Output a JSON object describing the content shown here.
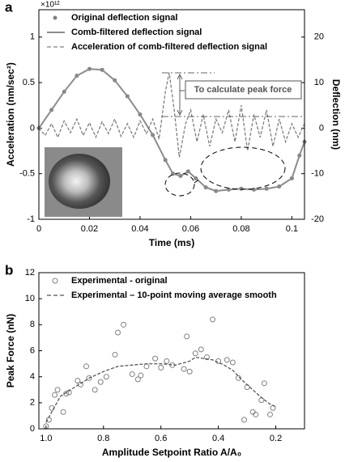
{
  "chart_data": [
    {
      "type": "line",
      "panel_label": "a",
      "exponent_label": "×10¹²",
      "xlabel": "Time (ms)",
      "ylabel": "Acceleration (nm/sec²)",
      "y2label": "Deflection (nm)",
      "annotation": "To calculate peak force",
      "xlim": [
        0,
        0.105
      ],
      "xticks": [
        0,
        0.02,
        0.04,
        0.06,
        0.08,
        0.1
      ],
      "ylim": [
        -1,
        1.3
      ],
      "yticks": [
        -1,
        -0.5,
        0,
        0.5,
        1
      ],
      "y2lim": [
        -20,
        26
      ],
      "y2ticks": [
        -20,
        -10,
        0,
        10,
        20
      ],
      "series": [
        {
          "name": "Original deflection signal",
          "color": "#808080",
          "style": "markers",
          "axis": "y2",
          "x": [
            0,
            0.005,
            0.01,
            0.015,
            0.02,
            0.025,
            0.03,
            0.035,
            0.04,
            0.045,
            0.05,
            0.053,
            0.056,
            0.059,
            0.062,
            0.066,
            0.07,
            0.075,
            0.08,
            0.085,
            0.09,
            0.095,
            0.1,
            0.103,
            0.105
          ],
          "values": [
            0,
            4,
            8,
            11.5,
            13,
            12.8,
            10.5,
            7,
            3,
            -1.5,
            -7,
            -10,
            -10.5,
            -9.5,
            -11,
            -13,
            -13.8,
            -13.5,
            -13.3,
            -13.5,
            -13.3,
            -12.8,
            -11,
            -6,
            -3
          ]
        },
        {
          "name": "Comb-filtered deflection signal",
          "color": "#8c8c8c",
          "style": "solid",
          "axis": "y2",
          "x": [
            0,
            0.005,
            0.01,
            0.015,
            0.02,
            0.025,
            0.03,
            0.035,
            0.04,
            0.045,
            0.05,
            0.053,
            0.056,
            0.059,
            0.062,
            0.066,
            0.07,
            0.075,
            0.08,
            0.085,
            0.09,
            0.095,
            0.1,
            0.103,
            0.105
          ],
          "values": [
            0,
            4,
            8,
            11.5,
            13,
            12.8,
            10.5,
            7,
            3,
            -1.5,
            -7,
            -10,
            -10.5,
            -9.5,
            -11,
            -13,
            -13.8,
            -13.5,
            -13.3,
            -13.5,
            -13.3,
            -12.8,
            -11,
            -6,
            -3
          ]
        },
        {
          "name": "Acceleration of comb-filtered deflection signal",
          "color": "#808080",
          "style": "dashed",
          "axis": "y",
          "x": [
            0,
            0.0025,
            0.005,
            0.0075,
            0.01,
            0.0125,
            0.015,
            0.0175,
            0.02,
            0.0225,
            0.025,
            0.0275,
            0.03,
            0.0325,
            0.035,
            0.0375,
            0.04,
            0.0425,
            0.045,
            0.0475,
            0.05,
            0.0515,
            0.0535,
            0.0555,
            0.058,
            0.06,
            0.0625,
            0.065,
            0.0675,
            0.07,
            0.0725,
            0.075,
            0.0775,
            0.08,
            0.0825,
            0.085,
            0.0875,
            0.09,
            0.0925,
            0.095,
            0.0975,
            0.1,
            0.1025,
            0.105
          ],
          "values": [
            0,
            -0.08,
            0.05,
            -0.1,
            0.08,
            -0.05,
            0.1,
            -0.08,
            0.06,
            -0.1,
            0.07,
            -0.06,
            0.1,
            -0.09,
            0.05,
            -0.1,
            0.08,
            -0.06,
            0.1,
            -0.12,
            0.4,
            0.61,
            0.2,
            -0.32,
            0.05,
            0.2,
            -0.15,
            0.15,
            -0.2,
            0.1,
            -0.05,
            0.2,
            -0.15,
            0.25,
            -0.25,
            0.15,
            -0.1,
            0.2,
            -0.2,
            0.1,
            -0.15,
            0.05,
            -0.1,
            0.05
          ]
        }
      ]
    },
    {
      "type": "scatter",
      "panel_label": "b",
      "xlabel": "Amplitude Setpoint Ratio A/A₀",
      "ylabel": "Peak Force (nN)",
      "xlim": [
        1.025,
        0.1
      ],
      "xticks": [
        {
          "value": 1,
          "label": "1.0"
        },
        0.8,
        0.6,
        0.4,
        0.2
      ],
      "ylim": [
        0,
        12
      ],
      "yticks": [
        0,
        2,
        4,
        6,
        8,
        10,
        12
      ],
      "series": [
        {
          "name": "Experimental - original",
          "color": "#808080",
          "style": "circles",
          "x": [
            1.0,
            0.99,
            0.98,
            0.97,
            0.96,
            0.94,
            0.93,
            0.92,
            0.89,
            0.88,
            0.86,
            0.85,
            0.83,
            0.81,
            0.79,
            0.76,
            0.75,
            0.73,
            0.7,
            0.68,
            0.67,
            0.65,
            0.62,
            0.6,
            0.58,
            0.56,
            0.52,
            0.51,
            0.5,
            0.48,
            0.46,
            0.44,
            0.42,
            0.4,
            0.37,
            0.35,
            0.33,
            0.31,
            0.3,
            0.28,
            0.27,
            0.25,
            0.24,
            0.22,
            0.21
          ],
          "values": [
            0.2,
            0.7,
            1.6,
            2.6,
            3.0,
            1.3,
            2.7,
            2.8,
            3.7,
            3.4,
            4.8,
            3.9,
            3.0,
            3.6,
            4.0,
            5.7,
            7.4,
            8.0,
            4.2,
            3.8,
            4.1,
            4.8,
            5.4,
            4.7,
            5.2,
            4.9,
            4.6,
            7.1,
            4.4,
            5.8,
            6.1,
            5.5,
            8.4,
            5.2,
            5.3,
            5.1,
            3.9,
            0.7,
            3.2,
            1.3,
            1.1,
            2.2,
            3.5,
            1.1,
            1.6
          ]
        },
        {
          "name": "Experimental – 10-point moving average smooth",
          "color": "#555555",
          "style": "dashed",
          "x": [
            1.0,
            0.95,
            0.9,
            0.85,
            0.8,
            0.75,
            0.7,
            0.65,
            0.6,
            0.55,
            0.5,
            0.48,
            0.45,
            0.42,
            0.38,
            0.35,
            0.32,
            0.28,
            0.25,
            0.22,
            0.2
          ],
          "values": [
            0.5,
            2.5,
            3.2,
            3.9,
            4.4,
            4.8,
            4.9,
            5.0,
            5.0,
            4.9,
            5.2,
            5.5,
            5.4,
            5.3,
            4.9,
            4.5,
            3.8,
            3.0,
            2.4,
            1.9,
            1.7
          ]
        }
      ]
    }
  ]
}
